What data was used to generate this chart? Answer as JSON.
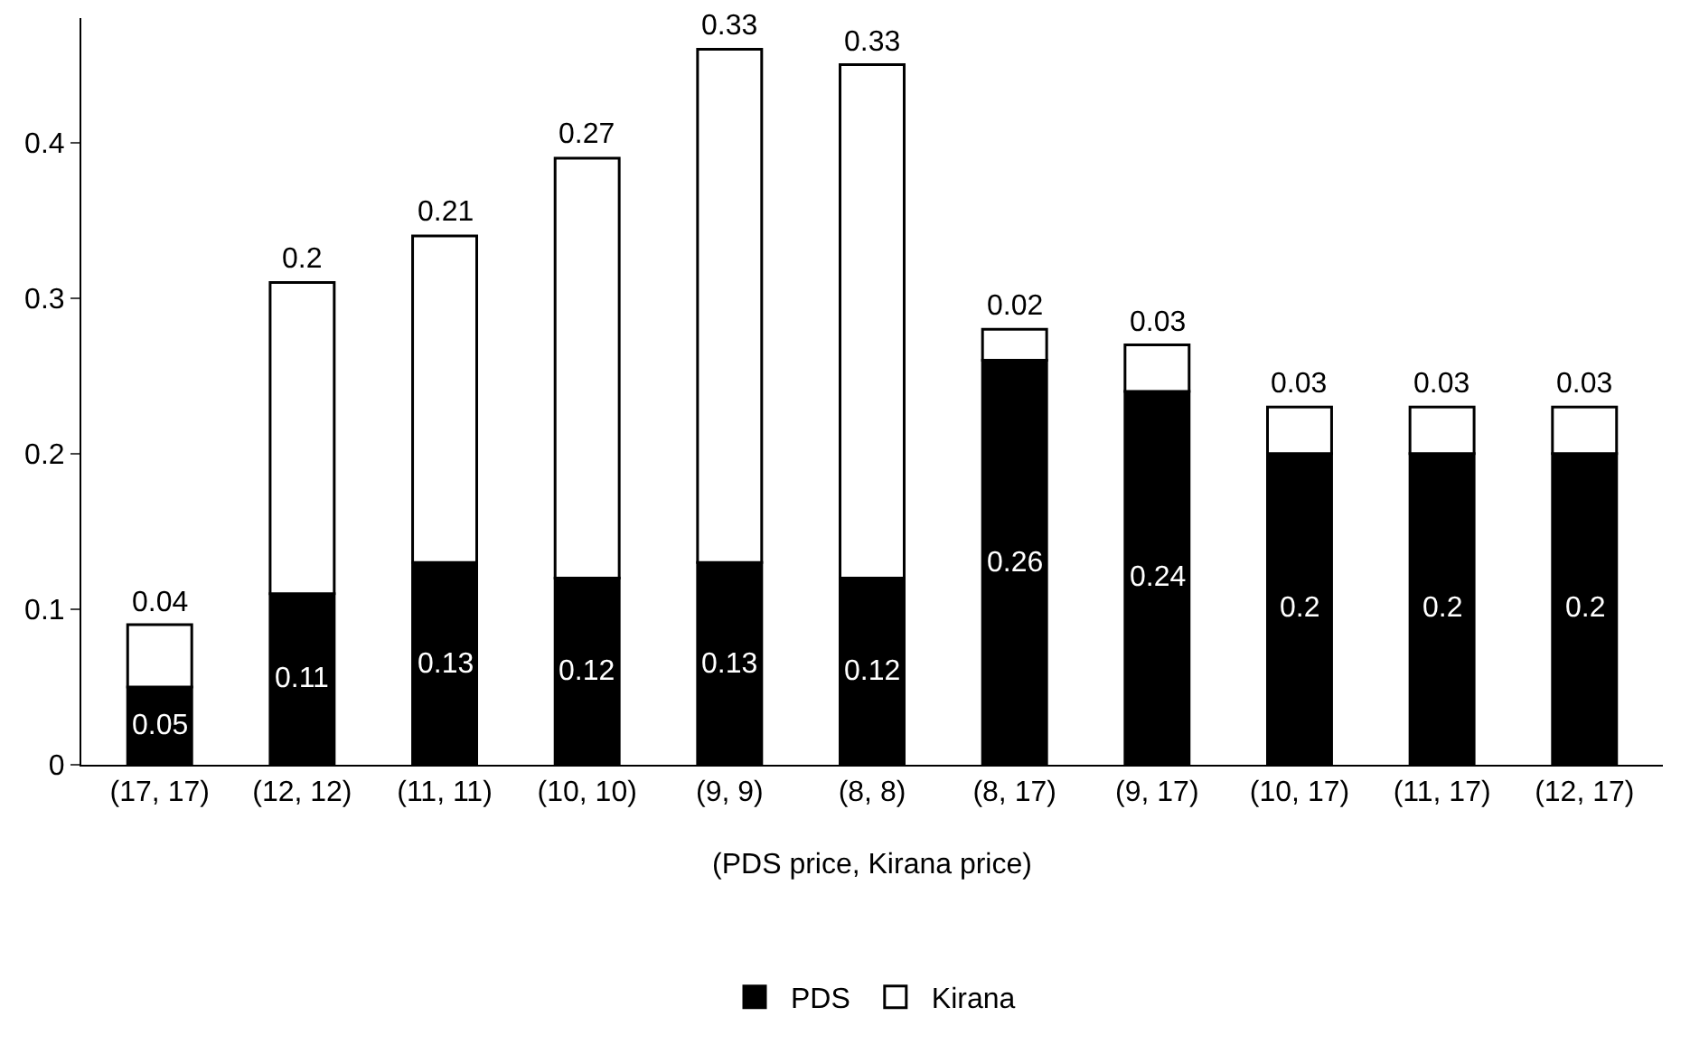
{
  "chart_data": {
    "type": "bar",
    "stacked": true,
    "xlabel": "(PDS price, Kirana price)",
    "categories": [
      "(17, 17)",
      "(12, 12)",
      "(11, 11)",
      "(10, 10)",
      "(9, 9)",
      "(8, 8)",
      "(8, 17)",
      "(9, 17)",
      "(10, 17)",
      "(11, 17)",
      "(12, 17)"
    ],
    "series": [
      {
        "name": "PDS",
        "color": "#000000",
        "values": [
          0.05,
          0.11,
          0.13,
          0.12,
          0.13,
          0.12,
          0.26,
          0.24,
          0.2,
          0.2,
          0.2
        ]
      },
      {
        "name": "Kirana",
        "color": "#ffffff",
        "values": [
          0.04,
          0.2,
          0.21,
          0.27,
          0.33,
          0.33,
          0.02,
          0.03,
          0.03,
          0.03,
          0.03
        ]
      }
    ],
    "ylim": [
      0,
      0.48
    ],
    "yticks": [
      0,
      0.1,
      0.2,
      0.3,
      0.4
    ],
    "grid": false,
    "legend": "bottom",
    "data_labels": true
  }
}
